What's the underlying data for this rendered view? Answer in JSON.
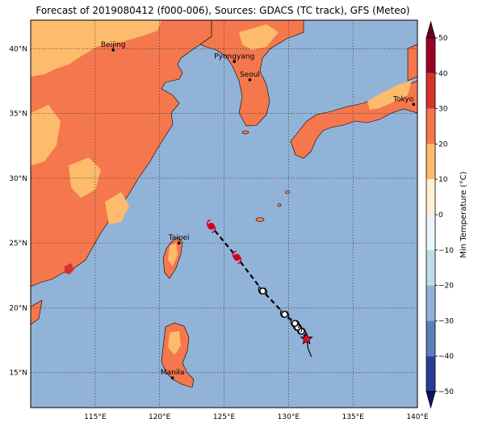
{
  "title": "Forecast of 2019080412 (f000-006), Sources: GDACS (TC track), GFS (Meteo)",
  "map": {
    "lon_range": [
      110,
      140
    ],
    "lat_range": [
      12.3,
      42.2
    ],
    "lon_ticks": [
      {
        "value": 115,
        "label": "115°E"
      },
      {
        "value": 120,
        "label": "120°E"
      },
      {
        "value": 125,
        "label": "125°E"
      },
      {
        "value": 130,
        "label": "130°E"
      },
      {
        "value": 135,
        "label": "135°E"
      },
      {
        "value": 140,
        "label": "140°E"
      }
    ],
    "lat_ticks": [
      {
        "value": 15,
        "label": "15°N"
      },
      {
        "value": 20,
        "label": "20°N"
      },
      {
        "value": 25,
        "label": "25°N"
      },
      {
        "value": 30,
        "label": "30°N"
      },
      {
        "value": 35,
        "label": "35°N"
      },
      {
        "value": 40,
        "label": "40°N"
      }
    ],
    "grid": true,
    "ocean_color": "#91b3d7",
    "colors": {
      "band_20_30": "#f4774e",
      "band_10_20": "#fdbb6c",
      "band_30_40": "#d5332b"
    },
    "cities": [
      {
        "name": "Beijing",
        "lon": 116.4,
        "lat": 39.9
      },
      {
        "name": "Pyongyang",
        "lon": 125.8,
        "lat": 39.0
      },
      {
        "name": "Seoul",
        "lon": 127.0,
        "lat": 37.6
      },
      {
        "name": "Tokyo",
        "lon": 139.7,
        "lat": 35.7
      },
      {
        "name": "Taipei",
        "lon": 121.5,
        "lat": 25.0
      },
      {
        "name": "Manila",
        "lon": 121.0,
        "lat": 14.6
      }
    ],
    "track": {
      "current_position": {
        "lon": 131.4,
        "lat": 17.6
      },
      "forecast_points": [
        {
          "lon": 131.0,
          "lat": 18.2,
          "symbol": "white-circle"
        },
        {
          "lon": 130.7,
          "lat": 18.5,
          "symbol": "white-circle"
        },
        {
          "lon": 130.5,
          "lat": 18.8,
          "symbol": "white-circle"
        },
        {
          "lon": 129.7,
          "lat": 19.5,
          "symbol": "white-circle"
        },
        {
          "lon": 128.0,
          "lat": 21.3,
          "symbol": "white-circle"
        },
        {
          "lon": 126.0,
          "lat": 23.9,
          "symbol": "red-typhoon"
        },
        {
          "lon": 124.0,
          "lat": 26.3,
          "symbol": "red-typhoon"
        }
      ]
    }
  },
  "colorbar": {
    "label": "Min Temperature (°C)",
    "ticks": [
      {
        "value": 50,
        "label": "50"
      },
      {
        "value": 40,
        "label": "40"
      },
      {
        "value": 30,
        "label": "30"
      },
      {
        "value": 20,
        "label": "20"
      },
      {
        "value": 10,
        "label": "10"
      },
      {
        "value": 0,
        "label": "0"
      },
      {
        "value": -10,
        "label": "−10"
      },
      {
        "value": -20,
        "label": "−20"
      },
      {
        "value": -30,
        "label": "−30"
      },
      {
        "value": -40,
        "label": "−40"
      },
      {
        "value": -50,
        "label": "−50"
      }
    ],
    "bands": [
      {
        "from": 40,
        "to": 50,
        "color": "#9e0026"
      },
      {
        "from": 30,
        "to": 40,
        "color": "#d5332b"
      },
      {
        "from": 20,
        "to": 30,
        "color": "#f4774e"
      },
      {
        "from": 10,
        "to": 20,
        "color": "#fdbb6c"
      },
      {
        "from": 0,
        "to": 10,
        "color": "#fff0d2"
      },
      {
        "from": -10,
        "to": 0,
        "color": "#eaf6f9"
      },
      {
        "from": -20,
        "to": -10,
        "color": "#bfdceb"
      },
      {
        "from": -30,
        "to": -20,
        "color": "#91b3d7"
      },
      {
        "from": -40,
        "to": -30,
        "color": "#5b7fbc"
      },
      {
        "from": -50,
        "to": -40,
        "color": "#2a3d96"
      }
    ],
    "over_color": "#6b0022",
    "under_color": "#111166"
  }
}
